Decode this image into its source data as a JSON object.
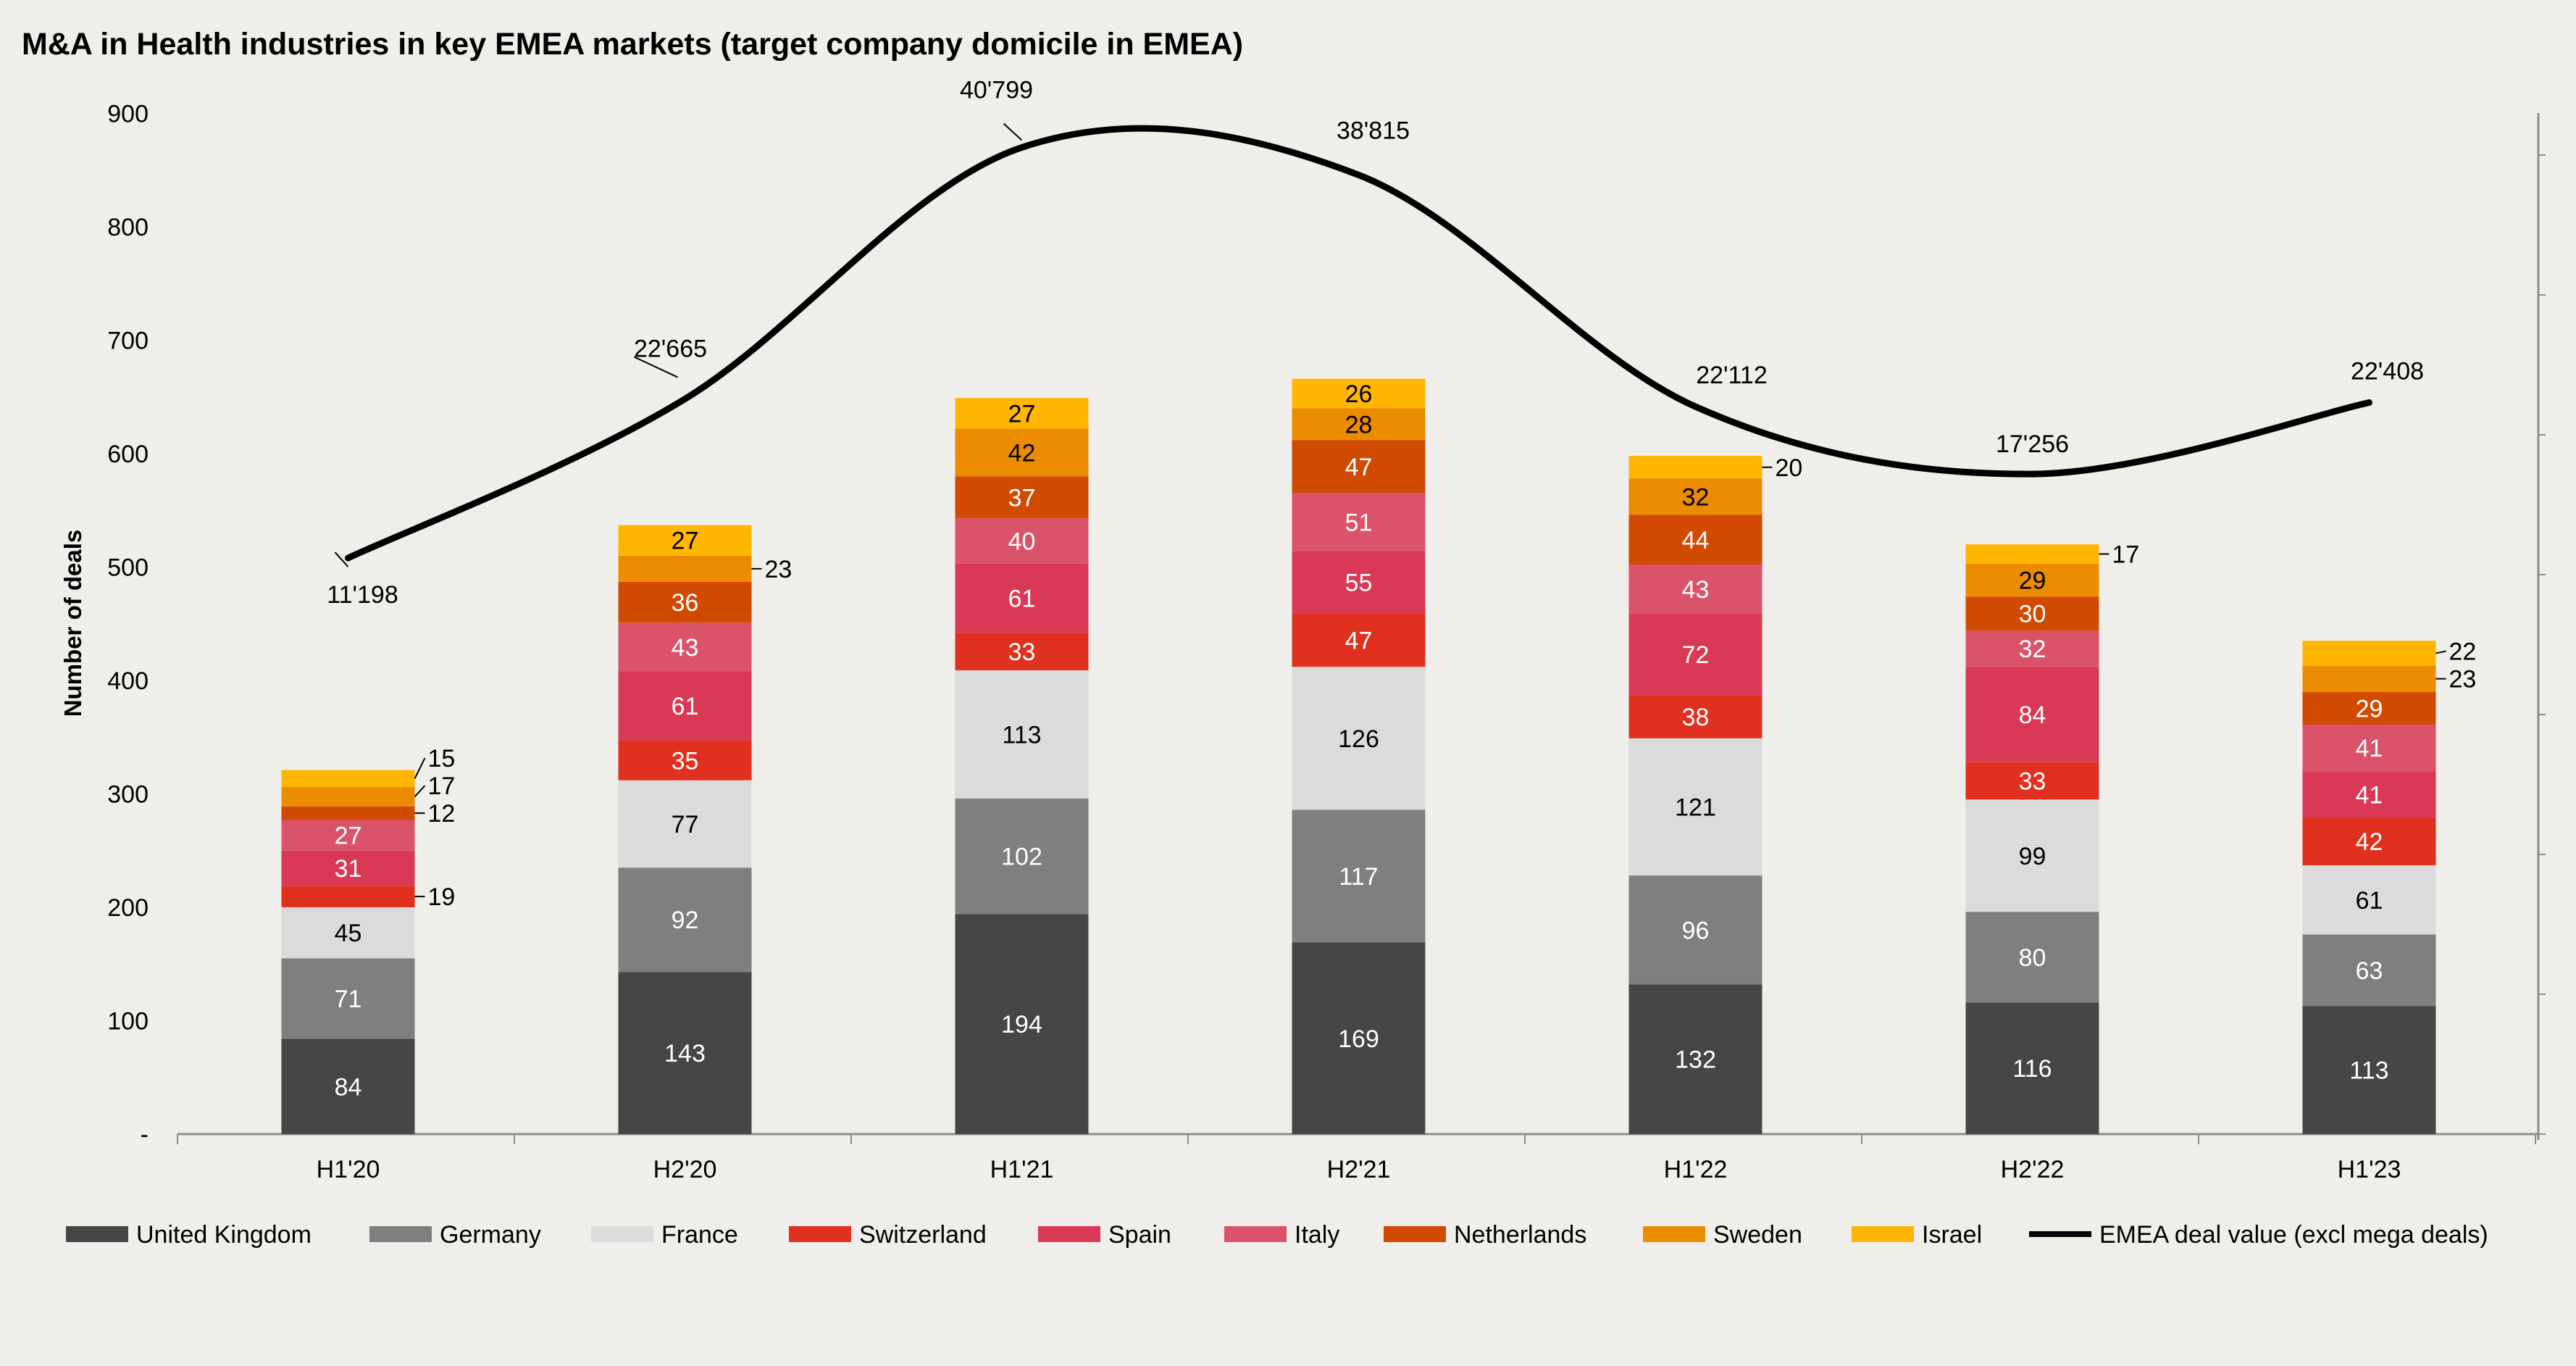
{
  "chart_data": {
    "type": "bar",
    "stacked": true,
    "title": "M&A in Health industries in key EMEA markets (target company domicile in EMEA)",
    "ylabel": "Number of deals",
    "xlabel": "",
    "ylim": [
      0,
      900
    ],
    "yticks": [
      "-",
      "100",
      "200",
      "300",
      "400",
      "500",
      "600",
      "700",
      "800",
      "900"
    ],
    "secondary_axis": "right, unlabeled",
    "grid": false,
    "legend_position": "bottom",
    "background": "#efeeea",
    "categories": [
      "H1'20",
      "H2'20",
      "H1'21",
      "H2'21",
      "H1'22",
      "H2'22",
      "H1'23"
    ],
    "series": [
      {
        "name": "United Kingdom",
        "color": "#464646",
        "label_color": "#ffffff",
        "values": [
          84,
          143,
          194,
          169,
          132,
          116,
          113
        ]
      },
      {
        "name": "Germany",
        "color": "#7f7f7f",
        "label_color": "#ffffff",
        "values": [
          71,
          92,
          102,
          117,
          96,
          80,
          63
        ]
      },
      {
        "name": "France",
        "color": "#dbdbdb",
        "label_color": "#000000",
        "values": [
          45,
          77,
          113,
          126,
          121,
          99,
          61
        ]
      },
      {
        "name": "Switzerland",
        "color": "#e0301e",
        "label_color": "#ffffff",
        "values": [
          19,
          35,
          33,
          47,
          38,
          33,
          42
        ]
      },
      {
        "name": "Spain",
        "color": "#d93954",
        "label_color": "#ffffff",
        "values": [
          31,
          61,
          61,
          55,
          72,
          84,
          41
        ]
      },
      {
        "name": "Italy",
        "color": "#db536a",
        "label_color": "#ffffff",
        "values": [
          27,
          43,
          40,
          51,
          43,
          32,
          41
        ]
      },
      {
        "name": "Netherlands",
        "color": "#d04a02",
        "label_color": "#ffffff",
        "values": [
          12,
          36,
          37,
          47,
          44,
          30,
          29
        ]
      },
      {
        "name": "Sweden",
        "color": "#eb8c00",
        "label_color": "#000000",
        "values": [
          17,
          23,
          42,
          28,
          32,
          29,
          23
        ]
      },
      {
        "name": "Israel",
        "color": "#ffb600",
        "label_color": "#000000",
        "values": [
          15,
          27,
          27,
          26,
          20,
          17,
          22
        ]
      }
    ],
    "line_series": {
      "name": "EMEA deal value (excl mega deals)",
      "color": "#000000",
      "axis": "secondary",
      "values": [
        11198,
        22665,
        40799,
        38815,
        22112,
        17256,
        22408
      ],
      "labels": [
        "11'198",
        "22'665",
        "40'799",
        "38'815",
        "22'112",
        "17'256",
        "22'408"
      ]
    }
  }
}
